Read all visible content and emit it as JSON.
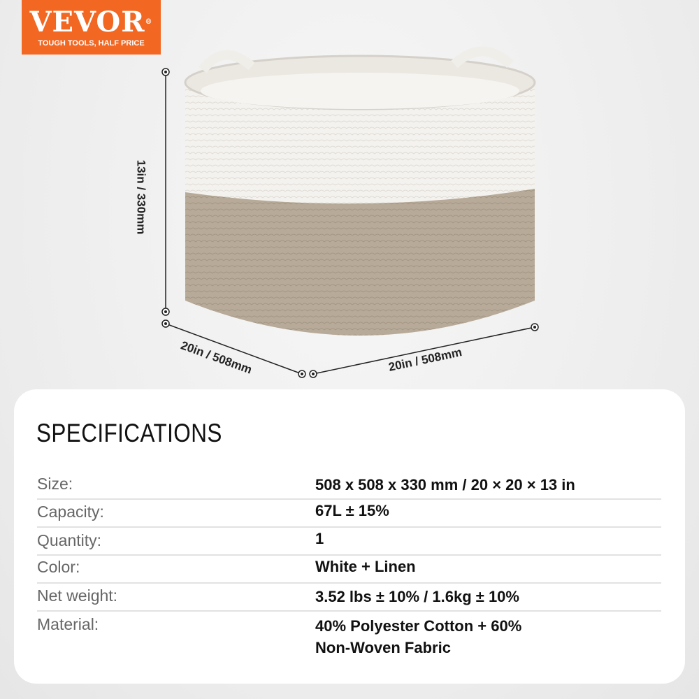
{
  "brand": {
    "name": "VEVOR",
    "tagline": "TOUGH TOOLS, HALF PRICE",
    "color": "#f26722"
  },
  "dimensions": {
    "height": "13in / 330mm",
    "depth": "20in / 508mm",
    "width": "20in / 508mm"
  },
  "product_colors": {
    "top_band": "#f4f2ee",
    "bottom_band": "#b8aa98"
  },
  "specs": {
    "title": "SPECIFICATIONS",
    "rows": [
      {
        "label": "Size:",
        "value": "508 x 508 x 330 mm / 20 × 20 × 13 in"
      },
      {
        "label": "Capacity:",
        "value": "67L ± 15%"
      },
      {
        "label": "Quantity:",
        "value": "1"
      },
      {
        "label": "Color:",
        "value": "White + Linen"
      },
      {
        "label": "Net weight:",
        "value": "3.52 lbs ± 10% / 1.6kg ± 10%"
      },
      {
        "label": "Material:",
        "value": "40% Polyester Cotton + 60%\nNon-Woven Fabric"
      }
    ]
  }
}
